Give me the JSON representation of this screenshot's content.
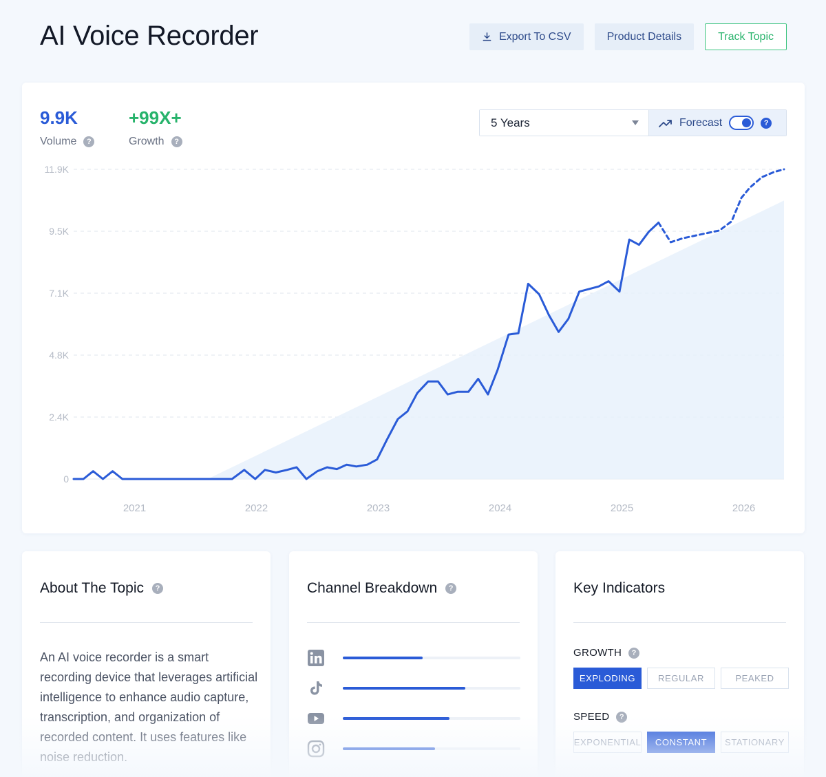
{
  "header": {
    "title": "AI Voice Recorder",
    "export_label": "Export To CSV",
    "details_label": "Product Details",
    "track_label": "Track Topic"
  },
  "metrics": {
    "volume_value": "9.9K",
    "volume_label": "Volume",
    "growth_value": "+99X+",
    "growth_label": "Growth"
  },
  "controls": {
    "range_selected": "5 Years",
    "forecast_label": "Forecast",
    "forecast_enabled": true
  },
  "colors": {
    "accent": "#2a5bd7",
    "growth": "#27b36b",
    "trend_fill": "#e8f1fc"
  },
  "chart_data": {
    "type": "line",
    "y_ticks": [
      "0",
      "2.4K",
      "4.8K",
      "7.1K",
      "9.5K",
      "11.9K"
    ],
    "ylim": [
      0,
      11900
    ],
    "x_ticks": [
      "2021",
      "2022",
      "2023",
      "2024",
      "2025",
      "2026"
    ],
    "xlim": [
      2020.5,
      2026.33
    ],
    "grid": true,
    "series": [
      {
        "style": "solid",
        "x": [
          2020.5,
          2020.58,
          2020.66,
          2020.74,
          2020.82,
          2020.9,
          2021.0,
          2021.5,
          2021.8,
          2021.9,
          2021.99,
          2022.07,
          2022.16,
          2022.25,
          2022.33,
          2022.41,
          2022.5,
          2022.58,
          2022.66,
          2022.74,
          2022.82,
          2022.91,
          2022.99,
          2023.07,
          2023.16,
          2023.24,
          2023.32,
          2023.41,
          2023.49,
          2023.57,
          2023.65,
          2023.74,
          2023.82,
          2023.9,
          2023.98,
          2024.07,
          2024.15,
          2024.23,
          2024.32,
          2024.4,
          2024.48,
          2024.56,
          2024.65,
          2024.73,
          2024.81,
          2024.89,
          2024.98,
          2025.06,
          2025.14,
          2025.22,
          2025.3
        ],
        "y": [
          0,
          0,
          300,
          0,
          300,
          0,
          0,
          0,
          0,
          350,
          0,
          350,
          250,
          350,
          450,
          0,
          300,
          450,
          380,
          550,
          480,
          550,
          750,
          1500,
          2300,
          2600,
          3300,
          3750,
          3750,
          3250,
          3350,
          3350,
          3850,
          3250,
          4200,
          5550,
          5600,
          7500,
          7100,
          6300,
          5650,
          6150,
          7200,
          7300,
          7400,
          7600,
          7200,
          9200,
          9000,
          9500,
          9850
        ]
      },
      {
        "style": "dashed",
        "x": [
          2025.3,
          2025.4,
          2025.5,
          2025.6,
          2025.7,
          2025.8,
          2025.9,
          2025.98,
          2026.05,
          2026.15,
          2026.25,
          2026.33
        ],
        "y": [
          9850,
          9100,
          9250,
          9350,
          9450,
          9550,
          9900,
          10800,
          11200,
          11600,
          11800,
          11900
        ]
      },
      {
        "style": "trend-area",
        "x": [
          2021.6,
          2026.33
        ],
        "y": [
          0,
          10700
        ]
      }
    ]
  },
  "about": {
    "title": "About The Topic",
    "text": "An AI voice recorder is a smart recording device that leverages artificial intelligence to enhance audio capture, transcription, and organization of recorded content. It uses features like noise reduction."
  },
  "channels": {
    "title": "Channel Breakdown",
    "items": [
      {
        "icon": "linkedin-icon",
        "share": 0.45
      },
      {
        "icon": "tiktok-icon",
        "share": 0.69
      },
      {
        "icon": "youtube-icon",
        "share": 0.6
      },
      {
        "icon": "instagram-icon",
        "share": 0.52
      }
    ]
  },
  "indicators": {
    "title": "Key Indicators",
    "growth_label": "GROWTH",
    "growth_options": [
      "EXPLODING",
      "REGULAR",
      "PEAKED"
    ],
    "growth_selected": "EXPLODING",
    "speed_label": "SPEED",
    "speed_options": [
      "EXPONENTIAL",
      "CONSTANT",
      "STATIONARY"
    ],
    "speed_selected": "CONSTANT"
  }
}
